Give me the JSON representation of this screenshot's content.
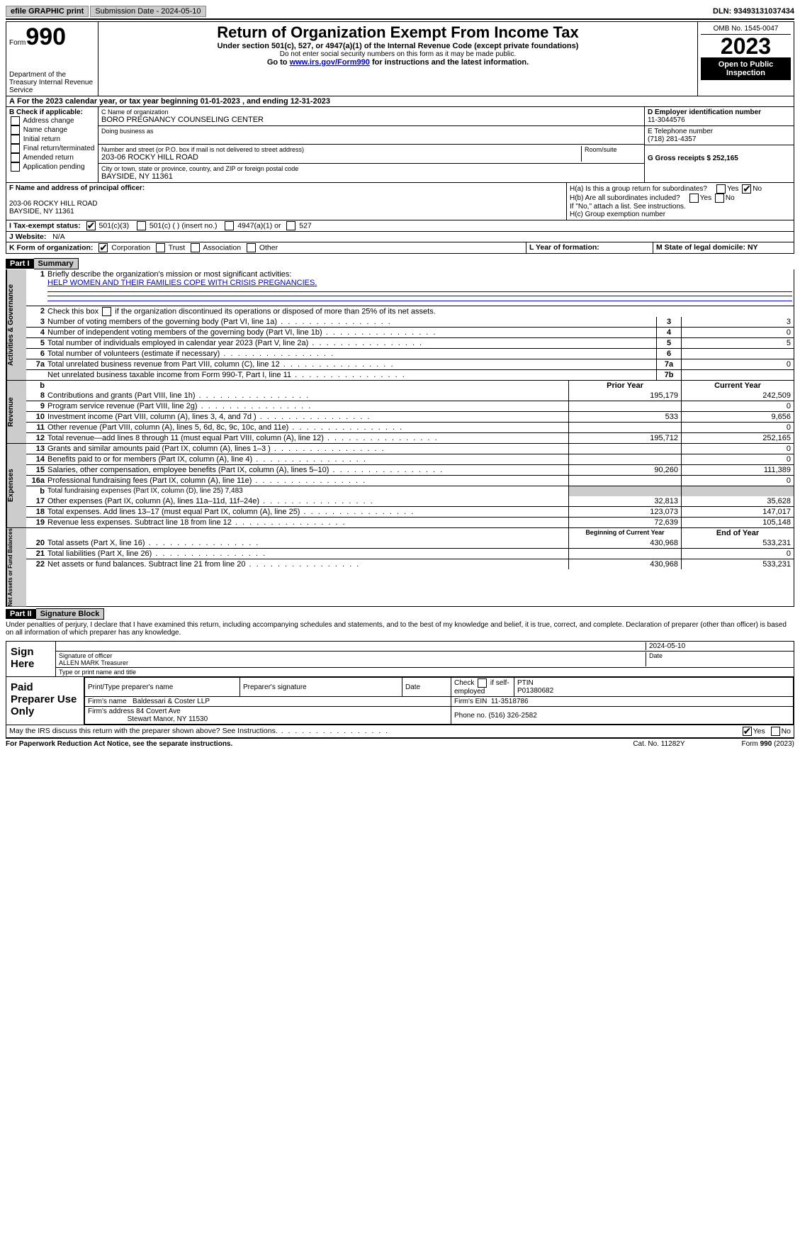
{
  "topbar": {
    "efile": "efile GRAPHIC print",
    "submission_label": "Submission Date - 2024-05-10",
    "dln_label": "DLN: 93493131037434"
  },
  "header": {
    "form_label": "Form",
    "form_number": "990",
    "dept": "Department of the Treasury\nInternal Revenue Service",
    "title": "Return of Organization Exempt From Income Tax",
    "sub1": "Under section 501(c), 527, or 4947(a)(1) of the Internal Revenue Code (except private foundations)",
    "sub2": "Do not enter social security numbers on this form as it may be made public.",
    "sub3_pre": "Go to ",
    "sub3_link": "www.irs.gov/Form990",
    "sub3_post": " for instructions and the latest information.",
    "omb": "OMB No. 1545-0047",
    "year": "2023",
    "open": "Open to Public Inspection"
  },
  "rowA": "For the 2023 calendar year, or tax year beginning 01-01-2023    , and ending 12-31-2023",
  "boxB": {
    "title": "B Check if applicable:",
    "opts": [
      "Address change",
      "Name change",
      "Initial return",
      "Final return/terminated",
      "Amended return",
      "Application pending"
    ]
  },
  "boxC": {
    "name_label": "C Name of organization",
    "name": "BORO PREGNANCY COUNSELING CENTER",
    "dba_label": "Doing business as",
    "street_label": "Number and street (or P.O. box if mail is not delivered to street address)",
    "room_label": "Room/suite",
    "street": "203-06 ROCKY HILL ROAD",
    "city_label": "City or town, state or province, country, and ZIP or foreign postal code",
    "city": "BAYSIDE, NY  11361"
  },
  "boxD": {
    "label": "D Employer identification number",
    "val": "11-3044576"
  },
  "boxE": {
    "label": "E Telephone number",
    "val": "(718) 281-4357"
  },
  "boxG": {
    "label": "G Gross receipts $ 252,165"
  },
  "boxF": {
    "label": "F  Name and address of principal officer:",
    "line1": "203-06 ROCKY HILL ROAD",
    "line2": "BAYSIDE, NY  11361"
  },
  "boxH": {
    "a": "H(a)  Is this a group return for subordinates?",
    "b": "H(b)  Are all subordinates included?",
    "b_note": "If \"No,\" attach a list. See instructions.",
    "c": "H(c)  Group exemption number"
  },
  "rowI": {
    "label": "I   Tax-exempt status:",
    "o1": "501(c)(3)",
    "o2": "501(c) (  ) (insert no.)",
    "o3": "4947(a)(1) or",
    "o4": "527"
  },
  "rowJ": {
    "label": "J   Website:",
    "val": "N/A"
  },
  "rowK": {
    "label": "K Form of organization:",
    "opts": [
      "Corporation",
      "Trust",
      "Association",
      "Other"
    ]
  },
  "rowL": {
    "label": "L Year of formation:"
  },
  "rowM": {
    "label": "M State of legal domicile: NY"
  },
  "part1": {
    "hdr": "Part I",
    "title": "Summary",
    "l1_label": "Briefly describe the organization's mission or most significant activities:",
    "l1_val": "HELP WOMEN AND THEIR FAMILIES COPE WITH CRISIS PREGNANCIES.",
    "l2": "Check this box   if the organization discontinued its operations or disposed of more than 25% of its net assets.",
    "rows_gov": [
      {
        "n": "3",
        "d": "Number of voting members of the governing body (Part VI, line 1a)",
        "box": "3",
        "v": "3"
      },
      {
        "n": "4",
        "d": "Number of independent voting members of the governing body (Part VI, line 1b)",
        "box": "4",
        "v": "0"
      },
      {
        "n": "5",
        "d": "Total number of individuals employed in calendar year 2023 (Part V, line 2a)",
        "box": "5",
        "v": "5"
      },
      {
        "n": "6",
        "d": "Total number of volunteers (estimate if necessary)",
        "box": "6",
        "v": ""
      },
      {
        "n": "7a",
        "d": "Total unrelated business revenue from Part VIII, column (C), line 12",
        "box": "7a",
        "v": "0"
      },
      {
        "n": "",
        "d": "Net unrelated business taxable income from Form 990-T, Part I, line 11",
        "box": "7b",
        "v": ""
      }
    ],
    "col_py": "Prior Year",
    "col_cy": "Current Year",
    "rows_rev": [
      {
        "n": "8",
        "d": "Contributions and grants (Part VIII, line 1h)",
        "py": "195,179",
        "cy": "242,509"
      },
      {
        "n": "9",
        "d": "Program service revenue (Part VIII, line 2g)",
        "py": "",
        "cy": "0"
      },
      {
        "n": "10",
        "d": "Investment income (Part VIII, column (A), lines 3, 4, and 7d )",
        "py": "533",
        "cy": "9,656"
      },
      {
        "n": "11",
        "d": "Other revenue (Part VIII, column (A), lines 5, 6d, 8c, 9c, 10c, and 11e)",
        "py": "",
        "cy": "0"
      },
      {
        "n": "12",
        "d": "Total revenue—add lines 8 through 11 (must equal Part VIII, column (A), line 12)",
        "py": "195,712",
        "cy": "252,165"
      }
    ],
    "rows_exp": [
      {
        "n": "13",
        "d": "Grants and similar amounts paid (Part IX, column (A), lines 1–3 )",
        "py": "",
        "cy": "0"
      },
      {
        "n": "14",
        "d": "Benefits paid to or for members (Part IX, column (A), line 4)",
        "py": "",
        "cy": "0"
      },
      {
        "n": "15",
        "d": "Salaries, other compensation, employee benefits (Part IX, column (A), lines 5–10)",
        "py": "90,260",
        "cy": "111,389"
      },
      {
        "n": "16a",
        "d": "Professional fundraising fees (Part IX, column (A), line 11e)",
        "py": "",
        "cy": "0"
      }
    ],
    "l16b": "Total fundraising expenses (Part IX, column (D), line 25) 7,483",
    "rows_exp2": [
      {
        "n": "17",
        "d": "Other expenses (Part IX, column (A), lines 11a–11d, 11f–24e)",
        "py": "32,813",
        "cy": "35,628"
      },
      {
        "n": "18",
        "d": "Total expenses. Add lines 13–17 (must equal Part IX, column (A), line 25)",
        "py": "123,073",
        "cy": "147,017"
      },
      {
        "n": "19",
        "d": "Revenue less expenses. Subtract line 18 from line 12",
        "py": "72,639",
        "cy": "105,148"
      }
    ],
    "col_boy": "Beginning of Current Year",
    "col_eoy": "End of Year",
    "rows_na": [
      {
        "n": "20",
        "d": "Total assets (Part X, line 16)",
        "py": "430,968",
        "cy": "533,231"
      },
      {
        "n": "21",
        "d": "Total liabilities (Part X, line 26)",
        "py": "",
        "cy": "0"
      },
      {
        "n": "22",
        "d": "Net assets or fund balances. Subtract line 21 from line 20",
        "py": "430,968",
        "cy": "533,231"
      }
    ],
    "vlabels": {
      "gov": "Activities & Governance",
      "rev": "Revenue",
      "exp": "Expenses",
      "na": "Net Assets or\nFund Balances"
    }
  },
  "part2": {
    "hdr": "Part II",
    "title": "Signature Block",
    "decl": "Under penalties of perjury, I declare that I have examined this return, including accompanying schedules and statements, and to the best of my knowledge and belief, it is true, correct, and complete. Declaration of preparer (other than officer) is based on all information of which preparer has any knowledge."
  },
  "sign": {
    "label": "Sign Here",
    "date": "2024-05-10",
    "sig_label": "Signature of officer",
    "officer": "ALLEN MARK  Treasurer",
    "type_label": "Type or print name and title",
    "date_label": "Date"
  },
  "prep": {
    "label": "Paid Preparer Use Only",
    "h1": "Print/Type preparer's name",
    "h2": "Preparer's signature",
    "h3": "Date",
    "h4_pre": "Check",
    "h4_post": "if self-employed",
    "h5": "PTIN",
    "ptin": "P01380682",
    "firm_label": "Firm's name",
    "firm": "Baldessari & Coster LLP",
    "ein_label": "Firm's EIN",
    "ein": "11-3518786",
    "addr_label": "Firm's address",
    "addr1": "84 Covert Ave",
    "addr2": "Stewart Manor, NY  11530",
    "phone_label": "Phone no.",
    "phone": "(516) 326-2582"
  },
  "discuss": "May the IRS discuss this return with the preparer shown above? See Instructions.",
  "footer": {
    "l": "For Paperwork Reduction Act Notice, see the separate instructions.",
    "m": "Cat. No. 11282Y",
    "r": "Form 990 (2023)"
  },
  "yesno": {
    "yes": "Yes",
    "no": "No"
  }
}
